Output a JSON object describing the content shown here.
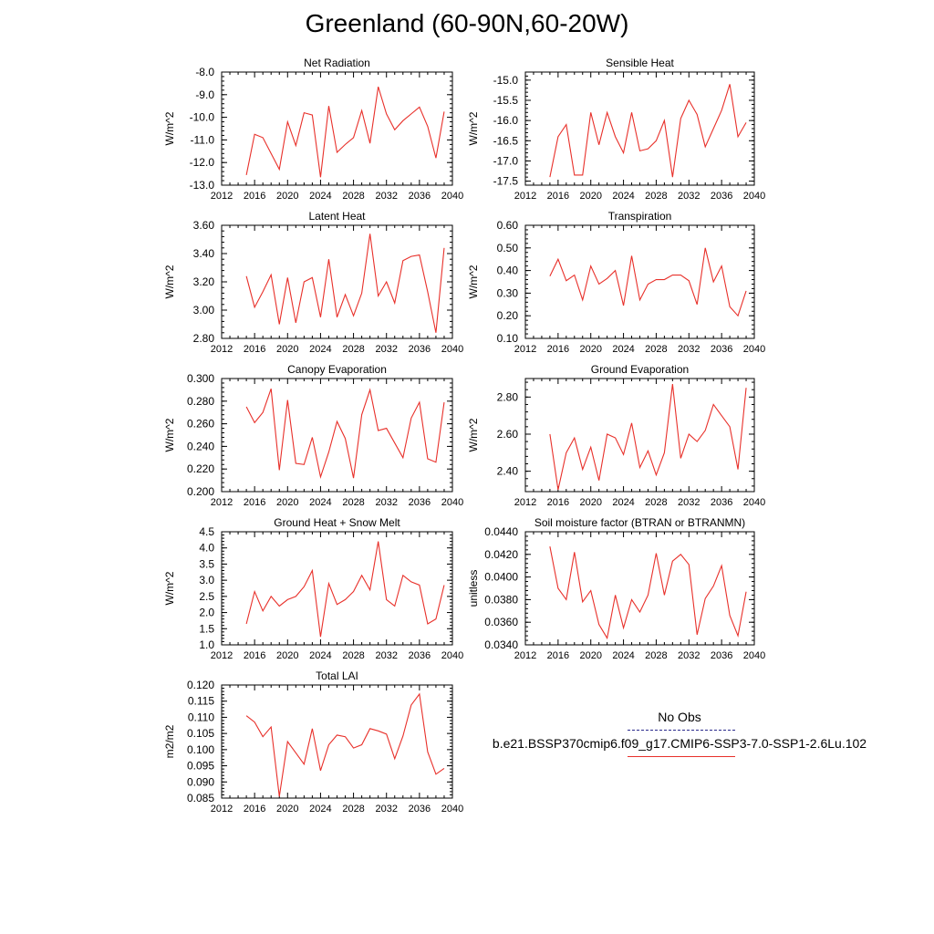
{
  "figure": {
    "title": "Greenland (60-90N,60-20W)"
  },
  "legend": {
    "entries": [
      {
        "label": "No Obs",
        "color": "#2a2a8c",
        "style": "dashed"
      },
      {
        "label": "b.e21.BSSP370cmip6.f09_g17.CMIP6-SSP3-7.0-SSP1-2.6Lu.102",
        "color": "#e8302a",
        "style": "solid"
      }
    ]
  },
  "chart_data": [
    {
      "type": "line",
      "title": "Net Radiation",
      "ylabel": "W/m^2",
      "xlim": [
        2012,
        2040
      ],
      "ylim": [
        -13,
        -8
      ],
      "xticks": [
        "2012",
        "2016",
        "2020",
        "2024",
        "2028",
        "2032",
        "2036",
        "2040"
      ],
      "yticks": [
        "-13.0",
        "-12.0",
        "-11.0",
        "-10.0",
        "-9.0",
        "-8.0"
      ],
      "x": [
        2015,
        2016,
        2017,
        2018,
        2019,
        2020,
        2021,
        2022,
        2023,
        2024,
        2025,
        2026,
        2027,
        2028,
        2029,
        2030,
        2031,
        2032,
        2033,
        2034,
        2035,
        2036,
        2037,
        2038,
        2039
      ],
      "series": [
        {
          "color": "#e8302a",
          "values": [
            -12.55,
            -10.75,
            -10.9,
            -11.6,
            -12.3,
            -10.2,
            -11.25,
            -9.8,
            -9.9,
            -12.65,
            -9.5,
            -11.55,
            -11.2,
            -10.9,
            -9.7,
            -11.15,
            -8.65,
            -9.85,
            -10.55,
            -10.15,
            -9.85,
            -9.55,
            -10.4,
            -11.8,
            -9.75
          ]
        }
      ]
    },
    {
      "type": "line",
      "title": "Sensible Heat",
      "ylabel": "W/m^2",
      "xlim": [
        2012,
        2040
      ],
      "ylim": [
        -17.6,
        -14.8
      ],
      "xticks": [
        "2012",
        "2016",
        "2020",
        "2024",
        "2028",
        "2032",
        "2036",
        "2040"
      ],
      "yticks": [
        "-17.5",
        "-17.0",
        "-16.5",
        "-16.0",
        "-15.5",
        "-15.0"
      ],
      "x": [
        2015,
        2016,
        2017,
        2018,
        2019,
        2020,
        2021,
        2022,
        2023,
        2024,
        2025,
        2026,
        2027,
        2028,
        2029,
        2030,
        2031,
        2032,
        2033,
        2034,
        2035,
        2036,
        2037,
        2038,
        2039
      ],
      "series": [
        {
          "color": "#e8302a",
          "values": [
            -17.4,
            -16.4,
            -16.1,
            -17.35,
            -17.35,
            -15.8,
            -16.6,
            -15.8,
            -16.4,
            -16.8,
            -15.8,
            -16.75,
            -16.7,
            -16.5,
            -16.0,
            -17.4,
            -15.95,
            -15.5,
            -15.85,
            -16.65,
            -16.2,
            -15.75,
            -15.1,
            -16.4,
            -16.05
          ]
        }
      ]
    },
    {
      "type": "line",
      "title": "Latent Heat",
      "ylabel": "W/m^2",
      "xlim": [
        2012,
        2040
      ],
      "ylim": [
        2.8,
        3.6
      ],
      "xticks": [
        "2012",
        "2016",
        "2020",
        "2024",
        "2028",
        "2032",
        "2036",
        "2040"
      ],
      "yticks": [
        "2.80",
        "3.00",
        "3.20",
        "3.40",
        "3.60"
      ],
      "x": [
        2015,
        2016,
        2017,
        2018,
        2019,
        2020,
        2021,
        2022,
        2023,
        2024,
        2025,
        2026,
        2027,
        2028,
        2029,
        2030,
        2031,
        2032,
        2033,
        2034,
        2035,
        2036,
        2037,
        2038,
        2039
      ],
      "series": [
        {
          "color": "#e8302a",
          "values": [
            3.24,
            3.02,
            3.13,
            3.25,
            2.9,
            3.23,
            2.91,
            3.2,
            3.23,
            2.95,
            3.36,
            2.95,
            3.11,
            2.96,
            3.12,
            3.54,
            3.1,
            3.2,
            3.05,
            3.35,
            3.38,
            3.39,
            3.13,
            2.84,
            3.44
          ]
        }
      ]
    },
    {
      "type": "line",
      "title": "Transpiration",
      "ylabel": "W/m^2",
      "xlim": [
        2012,
        2040
      ],
      "ylim": [
        0.1,
        0.6
      ],
      "xticks": [
        "2012",
        "2016",
        "2020",
        "2024",
        "2028",
        "2032",
        "2036",
        "2040"
      ],
      "yticks": [
        "0.10",
        "0.20",
        "0.30",
        "0.40",
        "0.50",
        "0.60"
      ],
      "x": [
        2015,
        2016,
        2017,
        2018,
        2019,
        2020,
        2021,
        2022,
        2023,
        2024,
        2025,
        2026,
        2027,
        2028,
        2029,
        2030,
        2031,
        2032,
        2033,
        2034,
        2035,
        2036,
        2037,
        2038,
        2039
      ],
      "series": [
        {
          "color": "#e8302a",
          "values": [
            0.375,
            0.45,
            0.355,
            0.38,
            0.27,
            0.42,
            0.34,
            0.365,
            0.4,
            0.245,
            0.465,
            0.27,
            0.34,
            0.36,
            0.36,
            0.38,
            0.38,
            0.355,
            0.25,
            0.5,
            0.35,
            0.42,
            0.24,
            0.2,
            0.31
          ]
        }
      ]
    },
    {
      "type": "line",
      "title": "Canopy Evaporation",
      "ylabel": "W/m^2",
      "xlim": [
        2012,
        2040
      ],
      "ylim": [
        0.2,
        0.3
      ],
      "xticks": [
        "2012",
        "2016",
        "2020",
        "2024",
        "2028",
        "2032",
        "2036",
        "2040"
      ],
      "yticks": [
        "0.200",
        "0.220",
        "0.240",
        "0.260",
        "0.280",
        "0.300"
      ],
      "x": [
        2015,
        2016,
        2017,
        2018,
        2019,
        2020,
        2021,
        2022,
        2023,
        2024,
        2025,
        2026,
        2027,
        2028,
        2029,
        2030,
        2031,
        2032,
        2033,
        2034,
        2035,
        2036,
        2037,
        2038,
        2039
      ],
      "series": [
        {
          "color": "#e8302a",
          "values": [
            0.275,
            0.261,
            0.27,
            0.291,
            0.219,
            0.281,
            0.225,
            0.224,
            0.248,
            0.213,
            0.235,
            0.262,
            0.247,
            0.212,
            0.268,
            0.29,
            0.254,
            0.256,
            0.243,
            0.23,
            0.265,
            0.279,
            0.229,
            0.226,
            0.279
          ]
        }
      ]
    },
    {
      "type": "line",
      "title": "Ground Evaporation",
      "ylabel": "W/m^2",
      "xlim": [
        2012,
        2040
      ],
      "ylim": [
        2.29,
        2.9
      ],
      "xticks": [
        "2012",
        "2016",
        "2020",
        "2024",
        "2028",
        "2032",
        "2036",
        "2040"
      ],
      "yticks": [
        "2.40",
        "2.60",
        "2.80"
      ],
      "x": [
        2015,
        2016,
        2017,
        2018,
        2019,
        2020,
        2021,
        2022,
        2023,
        2024,
        2025,
        2026,
        2027,
        2028,
        2029,
        2030,
        2031,
        2032,
        2033,
        2034,
        2035,
        2036,
        2037,
        2038,
        2039
      ],
      "series": [
        {
          "color": "#e8302a",
          "values": [
            2.6,
            2.3,
            2.5,
            2.58,
            2.41,
            2.53,
            2.35,
            2.6,
            2.58,
            2.49,
            2.66,
            2.42,
            2.51,
            2.38,
            2.5,
            2.87,
            2.47,
            2.6,
            2.56,
            2.62,
            2.76,
            2.7,
            2.64,
            2.41,
            2.85
          ]
        }
      ]
    },
    {
      "type": "line",
      "title": "Ground Heat + Snow Melt",
      "ylabel": "W/m^2",
      "xlim": [
        2012,
        2040
      ],
      "ylim": [
        1.0,
        4.5
      ],
      "xticks": [
        "2012",
        "2016",
        "2020",
        "2024",
        "2028",
        "2032",
        "2036",
        "2040"
      ],
      "yticks": [
        "1.0",
        "1.5",
        "2.0",
        "2.5",
        "3.0",
        "3.5",
        "4.0",
        "4.5"
      ],
      "x": [
        2015,
        2016,
        2017,
        2018,
        2019,
        2020,
        2021,
        2022,
        2023,
        2024,
        2025,
        2026,
        2027,
        2028,
        2029,
        2030,
        2031,
        2032,
        2033,
        2034,
        2035,
        2036,
        2037,
        2038,
        2039
      ],
      "series": [
        {
          "color": "#e8302a",
          "values": [
            1.65,
            2.65,
            2.05,
            2.5,
            2.2,
            2.4,
            2.5,
            2.8,
            3.3,
            1.25,
            2.9,
            2.25,
            2.4,
            2.65,
            3.15,
            2.7,
            4.2,
            2.4,
            2.2,
            3.15,
            2.95,
            2.85,
            1.65,
            1.8,
            2.85
          ]
        }
      ]
    },
    {
      "type": "line",
      "title": "Soil moisture factor (BTRAN or BTRANMN)",
      "ylabel": "unitless",
      "xlim": [
        2012,
        2040
      ],
      "ylim": [
        0.034,
        0.044
      ],
      "xticks": [
        "2012",
        "2016",
        "2020",
        "2024",
        "2028",
        "2032",
        "2036",
        "2040"
      ],
      "yticks": [
        "0.0340",
        "0.0360",
        "0.0380",
        "0.0400",
        "0.0420",
        "0.0440"
      ],
      "x": [
        2015,
        2016,
        2017,
        2018,
        2019,
        2020,
        2021,
        2022,
        2023,
        2024,
        2025,
        2026,
        2027,
        2028,
        2029,
        2030,
        2031,
        2032,
        2033,
        2034,
        2035,
        2036,
        2037,
        2038,
        2039
      ],
      "series": [
        {
          "color": "#e8302a",
          "values": [
            0.0427,
            0.039,
            0.038,
            0.0422,
            0.0378,
            0.0388,
            0.0358,
            0.0346,
            0.0384,
            0.0355,
            0.038,
            0.0369,
            0.0384,
            0.0421,
            0.0384,
            0.0414,
            0.042,
            0.0411,
            0.0349,
            0.0381,
            0.0392,
            0.041,
            0.0366,
            0.0348,
            0.0387
          ]
        }
      ]
    },
    {
      "type": "line",
      "title": "Total LAI",
      "ylabel": "m2/m2",
      "xlim": [
        2012,
        2040
      ],
      "ylim": [
        0.085,
        0.12
      ],
      "xticks": [
        "2012",
        "2016",
        "2020",
        "2024",
        "2028",
        "2032",
        "2036",
        "2040"
      ],
      "yticks": [
        "0.085",
        "0.090",
        "0.095",
        "0.100",
        "0.105",
        "0.110",
        "0.115",
        "0.120"
      ],
      "x": [
        2015,
        2016,
        2017,
        2018,
        2019,
        2020,
        2021,
        2022,
        2023,
        2024,
        2025,
        2026,
        2027,
        2028,
        2029,
        2030,
        2031,
        2032,
        2033,
        2034,
        2035,
        2036,
        2037,
        2038,
        2039
      ],
      "series": [
        {
          "color": "#e8302a",
          "values": [
            0.1105,
            0.1085,
            0.104,
            0.107,
            0.0855,
            0.1025,
            0.099,
            0.0955,
            0.1065,
            0.0935,
            0.1015,
            0.1045,
            0.104,
            0.1005,
            0.1015,
            0.1065,
            0.1058,
            0.1048,
            0.0972,
            0.1042,
            0.1138,
            0.1172,
            0.0993,
            0.0924,
            0.0942
          ]
        }
      ]
    }
  ]
}
